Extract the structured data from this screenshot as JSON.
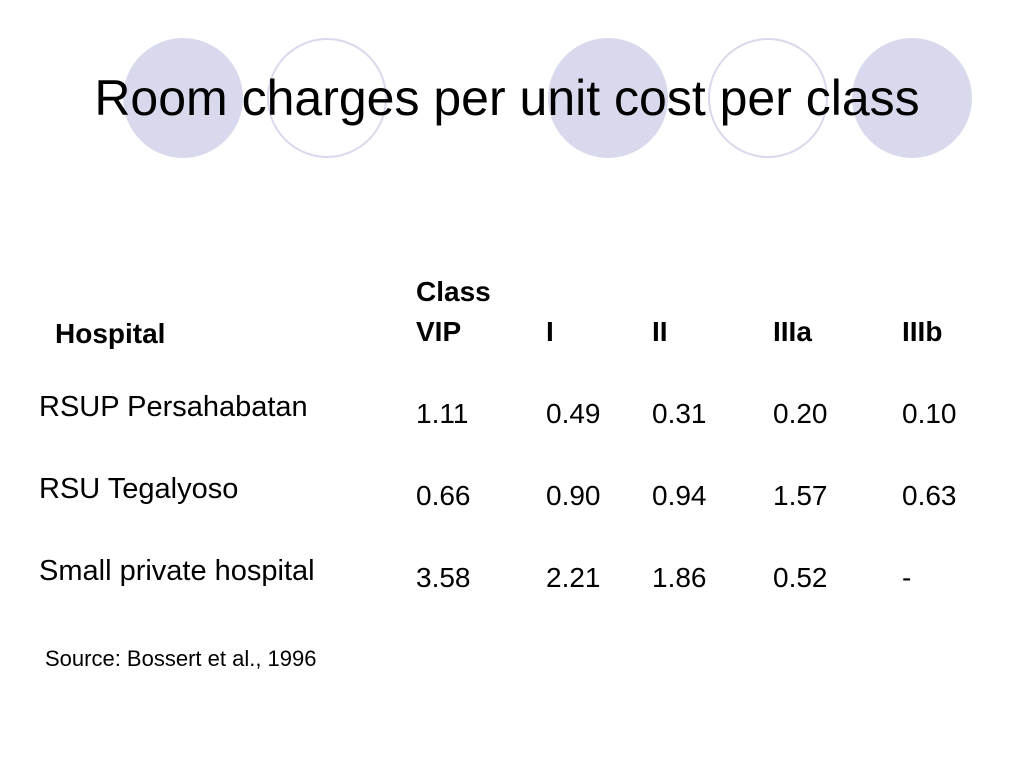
{
  "slide": {
    "title": "Room charges per unit cost per class"
  },
  "table": {
    "hospital_header": "Hospital",
    "class_label": "Class",
    "columns": [
      "VIP",
      "I",
      "II",
      "IIIa",
      "IIIb"
    ],
    "rows": [
      {
        "hospital": "RSUP Persahabatan",
        "values": [
          "1.11",
          "0.49",
          "0.31",
          "0.20",
          "0.10"
        ]
      },
      {
        "hospital": "RSU Tegalyoso",
        "values": [
          "0.66",
          "0.90",
          "0.94",
          "1.57",
          "0.63"
        ]
      },
      {
        "hospital": "Small private hospital",
        "values": [
          "3.58",
          "2.21",
          "1.86",
          "0.52",
          "-"
        ]
      }
    ]
  },
  "source": "Source: Bossert et al., 1996",
  "colors": {
    "decoration": "#d9d9ed"
  }
}
